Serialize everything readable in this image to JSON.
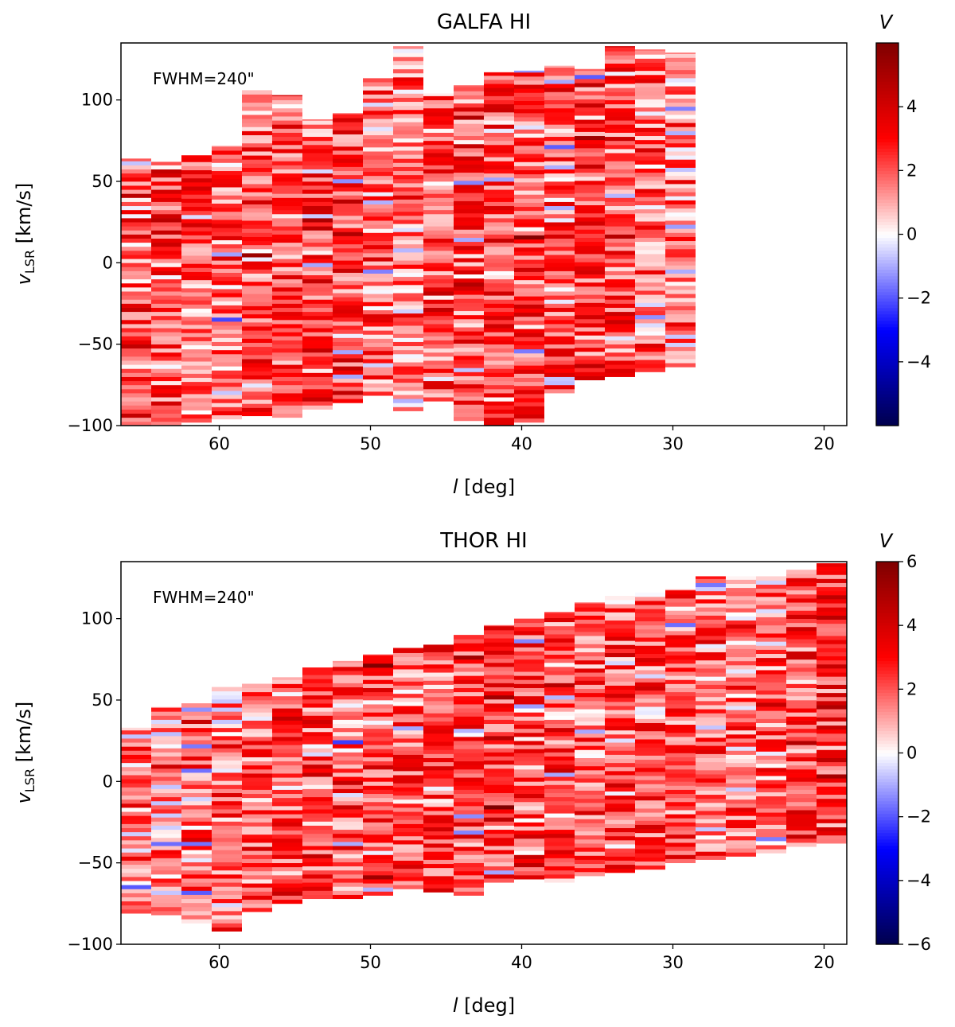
{
  "chart_data": [
    {
      "type": "heatmap",
      "title": "GALFA HI",
      "annotation": "FWHM=240\"",
      "xlabel": {
        "symbol": "l",
        "unit": " [deg]"
      },
      "ylabel": {
        "symbol": "v",
        "subscript": "LSR",
        "unit": " [km/s]"
      },
      "xlim": [
        66.5,
        18.5
      ],
      "ylim": [
        -100,
        135
      ],
      "xticks": [
        60,
        50,
        40,
        30,
        20
      ],
      "yticks": [
        -100,
        -50,
        0,
        50,
        100
      ],
      "colorbar": {
        "label": "V",
        "vmin": -6,
        "vmax": 6,
        "ticks": [
          -4,
          -2,
          0,
          2,
          4
        ],
        "cmap": "seismic"
      },
      "column_width_deg": 2,
      "columns": [
        {
          "l": 65.5,
          "vmin": -101,
          "vmax": 64,
          "mean": 2.0
        },
        {
          "l": 63.5,
          "vmin": -100,
          "vmax": 62,
          "mean": 2.1
        },
        {
          "l": 61.5,
          "vmin": -98,
          "vmax": 66,
          "mean": 2.0
        },
        {
          "l": 59.5,
          "vmin": -96,
          "vmax": 72,
          "mean": 1.9
        },
        {
          "l": 57.5,
          "vmin": -94,
          "vmax": 106,
          "mean": 2.1
        },
        {
          "l": 55.5,
          "vmin": -95,
          "vmax": 103,
          "mean": 2.3
        },
        {
          "l": 53.5,
          "vmin": -90,
          "vmax": 88,
          "mean": 2.3
        },
        {
          "l": 51.5,
          "vmin": -86,
          "vmax": 92,
          "mean": 2.4
        },
        {
          "l": 49.5,
          "vmin": -84,
          "vmax": 114,
          "mean": 1.6
        },
        {
          "l": 47.5,
          "vmin": -91,
          "vmax": 133,
          "mean": 1.2
        },
        {
          "l": 45.5,
          "vmin": -85,
          "vmax": 104,
          "mean": 2.0
        },
        {
          "l": 43.5,
          "vmin": -97,
          "vmax": 109,
          "mean": 2.3
        },
        {
          "l": 41.5,
          "vmin": -102,
          "vmax": 117,
          "mean": 2.0
        },
        {
          "l": 39.5,
          "vmin": -98,
          "vmax": 118,
          "mean": 2.2
        },
        {
          "l": 37.5,
          "vmin": -80,
          "vmax": 121,
          "mean": 2.0
        },
        {
          "l": 35.5,
          "vmin": -72,
          "vmax": 119,
          "mean": 2.2
        },
        {
          "l": 33.5,
          "vmin": -70,
          "vmax": 133,
          "mean": 2.2
        },
        {
          "l": 31.5,
          "vmin": -67,
          "vmax": 131,
          "mean": 1.6
        },
        {
          "l": 29.5,
          "vmin": -64,
          "vmax": 129,
          "mean": 1.2
        }
      ]
    },
    {
      "type": "heatmap",
      "title": "THOR HI",
      "annotation": "FWHM=240\"",
      "xlabel": {
        "symbol": "l",
        "unit": " [deg]"
      },
      "ylabel": {
        "symbol": "v",
        "subscript": "LSR",
        "unit": " [km/s]"
      },
      "xlim": [
        66.5,
        18.5
      ],
      "ylim": [
        -100,
        135
      ],
      "xticks": [
        60,
        50,
        40,
        30,
        20
      ],
      "yticks": [
        -100,
        -50,
        0,
        50,
        100
      ],
      "colorbar": {
        "label": "V",
        "vmin": -6,
        "vmax": 6,
        "ticks": [
          -6,
          -4,
          -2,
          0,
          2,
          4,
          6
        ],
        "cmap": "seismic"
      },
      "column_width_deg": 2,
      "columns": [
        {
          "l": 65.5,
          "vmin": -81,
          "vmax": 33,
          "mean": 1.6
        },
        {
          "l": 63.5,
          "vmin": -82,
          "vmax": 46,
          "mean": 1.5
        },
        {
          "l": 61.5,
          "vmin": -87,
          "vmax": 48,
          "mean": 1.5
        },
        {
          "l": 59.5,
          "vmin": -92,
          "vmax": 58,
          "mean": 1.6
        },
        {
          "l": 57.5,
          "vmin": -80,
          "vmax": 60,
          "mean": 1.8
        },
        {
          "l": 55.5,
          "vmin": -75,
          "vmax": 64,
          "mean": 2.1
        },
        {
          "l": 53.5,
          "vmin": -72,
          "vmax": 70,
          "mean": 2.2
        },
        {
          "l": 51.5,
          "vmin": -72,
          "vmax": 74,
          "mean": 2.0
        },
        {
          "l": 49.5,
          "vmin": -70,
          "vmax": 78,
          "mean": 2.1
        },
        {
          "l": 47.5,
          "vmin": -66,
          "vmax": 82,
          "mean": 2.2
        },
        {
          "l": 45.5,
          "vmin": -68,
          "vmax": 84,
          "mean": 2.1
        },
        {
          "l": 43.5,
          "vmin": -70,
          "vmax": 90,
          "mean": 2.3
        },
        {
          "l": 41.5,
          "vmin": -62,
          "vmax": 96,
          "mean": 2.3
        },
        {
          "l": 39.5,
          "vmin": -60,
          "vmax": 100,
          "mean": 2.2
        },
        {
          "l": 37.5,
          "vmin": -62,
          "vmax": 104,
          "mean": 2.2
        },
        {
          "l": 35.5,
          "vmin": -58,
          "vmax": 110,
          "mean": 2.0
        },
        {
          "l": 33.5,
          "vmin": -56,
          "vmax": 114,
          "mean": 2.1
        },
        {
          "l": 31.5,
          "vmin": -54,
          "vmax": 116,
          "mean": 1.9
        },
        {
          "l": 29.5,
          "vmin": -50,
          "vmax": 118,
          "mean": 2.0
        },
        {
          "l": 27.5,
          "vmin": -48,
          "vmax": 126,
          "mean": 1.6
        },
        {
          "l": 25.5,
          "vmin": -46,
          "vmax": 126,
          "mean": 1.7
        },
        {
          "l": 23.5,
          "vmin": -44,
          "vmax": 126,
          "mean": 1.8
        },
        {
          "l": 21.5,
          "vmin": -40,
          "vmax": 130,
          "mean": 2.1
        },
        {
          "l": 19.5,
          "vmin": -38,
          "vmax": 134,
          "mean": 2.5
        }
      ]
    }
  ]
}
